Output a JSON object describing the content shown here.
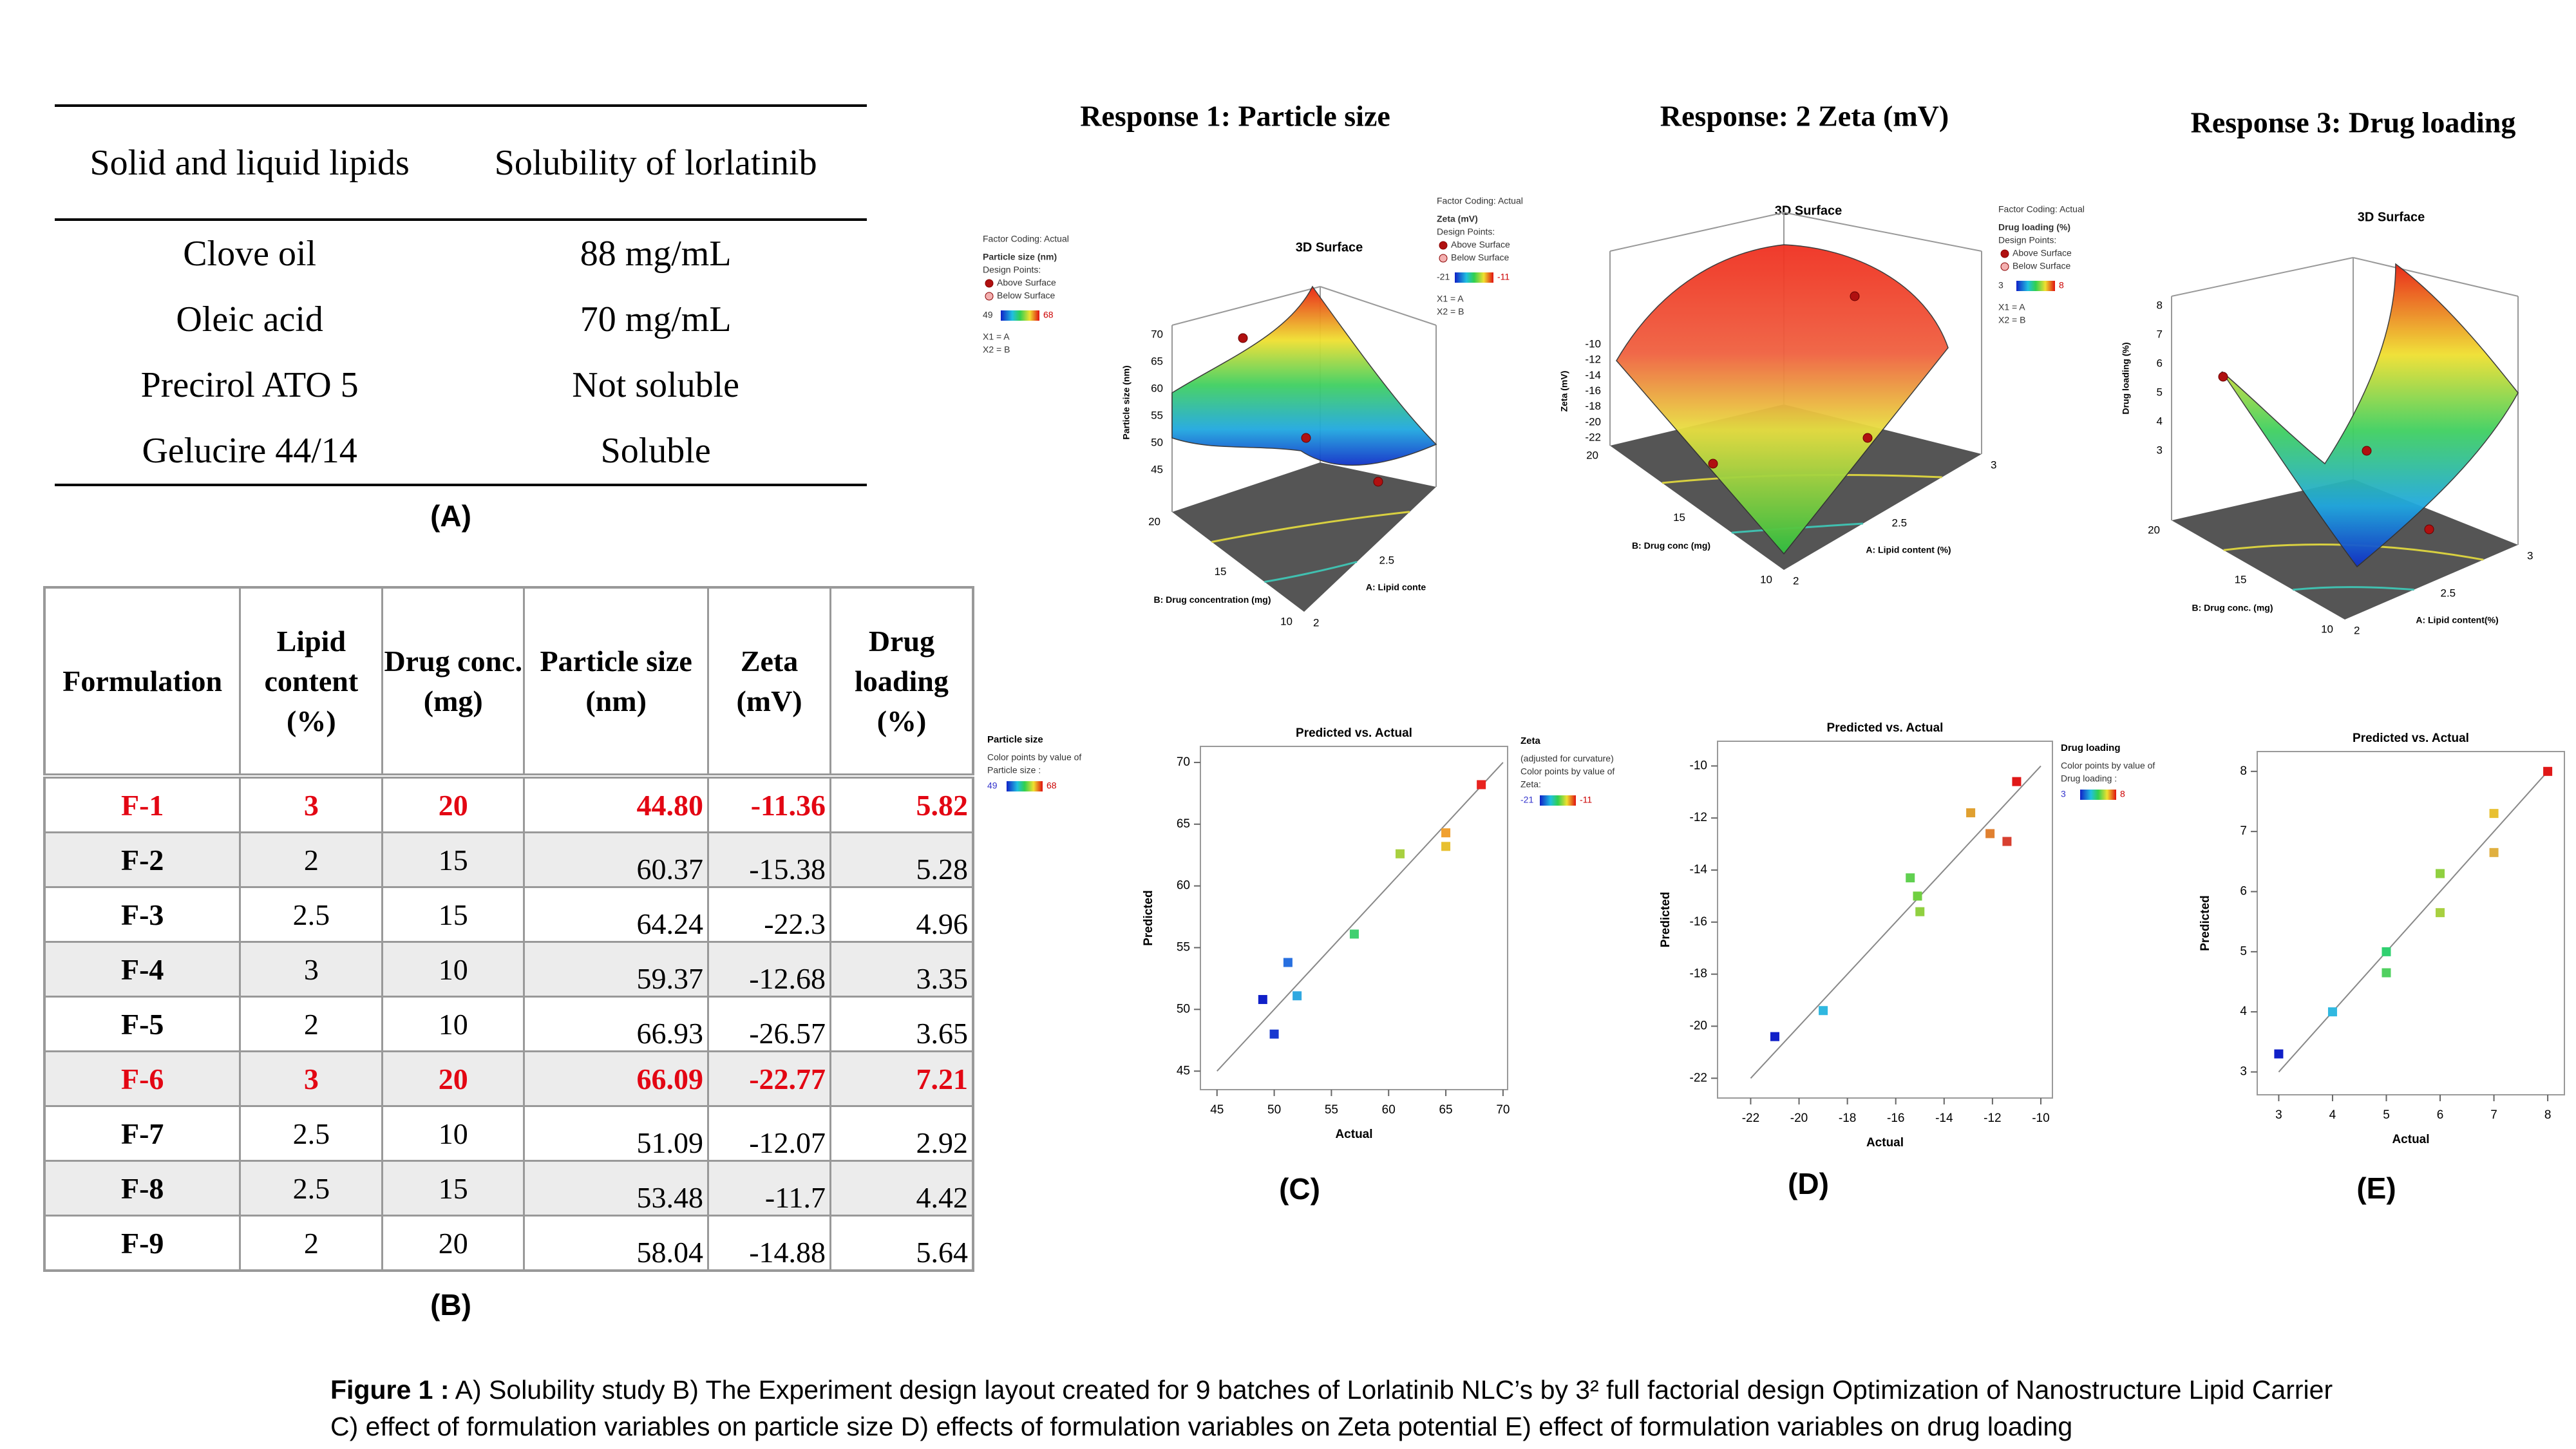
{
  "table_a": {
    "headers": [
      "Solid and liquid lipids",
      "Solubility of lorlatinib"
    ],
    "rows": [
      [
        "Clove oil",
        "88 mg/mL"
      ],
      [
        "Oleic acid",
        "70 mg/mL"
      ],
      [
        "Precirol ATO 5",
        "Not soluble"
      ],
      [
        "Gelucire 44/14",
        "Soluble"
      ]
    ],
    "label": "(A)"
  },
  "table_b": {
    "headers": [
      "Formulation",
      "Lipid content (%)",
      "Drug conc. (mg)",
      "Particle size (nm)",
      "Zeta (mV)",
      "Drug loading (%)"
    ],
    "rows": [
      {
        "cells": [
          "F-1",
          "3",
          "20",
          "44.80",
          "-11.36",
          "5.82"
        ],
        "highlight": true
      },
      {
        "cells": [
          "F-2",
          "2",
          "15",
          "60.37",
          "-15.38",
          "5.28"
        ],
        "highlight": false
      },
      {
        "cells": [
          "F-3",
          "2.5",
          "15",
          "64.24",
          "-22.3",
          "4.96"
        ],
        "highlight": false
      },
      {
        "cells": [
          "F-4",
          "3",
          "10",
          "59.37",
          "-12.68",
          "3.35"
        ],
        "highlight": false
      },
      {
        "cells": [
          "F-5",
          "2",
          "10",
          "66.93",
          "-26.57",
          "3.65"
        ],
        "highlight": false
      },
      {
        "cells": [
          "F-6",
          "3",
          "20",
          "66.09",
          "-22.77",
          "7.21"
        ],
        "highlight": true
      },
      {
        "cells": [
          "F-7",
          "2.5",
          "10",
          "51.09",
          "-12.07",
          "2.92"
        ],
        "highlight": false
      },
      {
        "cells": [
          "F-8",
          "2.5",
          "15",
          "53.48",
          "-11.7",
          "4.42"
        ],
        "highlight": false
      },
      {
        "cells": [
          "F-9",
          "2",
          "20",
          "58.04",
          "-14.88",
          "5.64"
        ],
        "highlight": false
      }
    ],
    "label": "(B)"
  },
  "surfaces": [
    {
      "heading": "Response 1: Particle size",
      "title": "3D Surface",
      "legend": {
        "coding": "Factor Coding: Actual",
        "response": "Particle size  (nm)",
        "design": "Design Points:",
        "above": "Above Surface",
        "below": "Below Surface",
        "cmin": "49",
        "cmax": "68",
        "x1": "X1 = A",
        "x2": "X2 = B"
      },
      "z_label": "Particle size  (nm)",
      "z_ticks": [
        "70",
        "65",
        "60",
        "55",
        "50",
        "45"
      ],
      "y_label": "B: Drug concentration (mg)",
      "y_ticks": [
        "20",
        "15",
        "10"
      ],
      "x_label": "A: Lipid conte",
      "x_ticks": [
        "2",
        "2.5"
      ]
    },
    {
      "heading": "Response: 2 Zeta (mV)",
      "title": "3D Surface",
      "legend": {
        "coding": "Factor Coding: Actual",
        "response": "Zeta (mV)",
        "design": "Design Points:",
        "above": "Above Surface",
        "below": "Below Surface",
        "cmin": "-21",
        "cmax": "-11",
        "x1": "X1 = A",
        "x2": "X2 = B"
      },
      "z_label": "Zeta (mV)",
      "z_ticks": [
        "-10",
        "-12",
        "-14",
        "-16",
        "-18",
        "-20",
        "-22"
      ],
      "y_label": "B: Drug conc (mg)",
      "y_ticks": [
        "20",
        "15",
        "10"
      ],
      "x_label": "A: Lipid content  (%)",
      "x_ticks": [
        "2",
        "2.5",
        "3"
      ]
    },
    {
      "heading": "Response 3: Drug loading",
      "title": "3D Surface",
      "legend": {
        "coding": "Factor Coding: Actual",
        "response": "Drug loading  (%)",
        "design": "Design Points:",
        "above": "Above Surface",
        "below": "Below Surface",
        "cmin": "3",
        "cmax": "8",
        "x1": "X1 = A",
        "x2": "X2 = B"
      },
      "z_label": "Drug loading (%)",
      "z_ticks": [
        "8",
        "7",
        "6",
        "5",
        "4",
        "3"
      ],
      "y_label": "B: Drug conc. (mg)",
      "y_ticks": [
        "20",
        "15",
        "10"
      ],
      "x_label": "A: Lipid content(%)",
      "x_ticks": [
        "2",
        "2.5",
        "3"
      ]
    }
  ],
  "chart_data": [
    {
      "type": "scatter",
      "title": "Predicted vs. Actual",
      "x_label": "Actual",
      "y_label": "Predicted",
      "panel": "(C)",
      "legend": {
        "title": "Particle size",
        "lines": [
          "Color points by value of",
          "Particle size :"
        ],
        "min": "49",
        "max": "68"
      },
      "xlim": [
        43.55,
        70.4
      ],
      "ylim": [
        43.5,
        71.3
      ],
      "xticks": [
        45,
        50,
        55,
        60,
        65,
        70
      ],
      "yticks": [
        45,
        50,
        55,
        60,
        65,
        70
      ],
      "x": [
        68.1,
        65,
        65,
        61,
        57,
        52,
        51.2,
        49,
        50
      ],
      "values": [
        68.2,
        64.3,
        63.2,
        62.6,
        56.1,
        51.1,
        53.8,
        50.8,
        48
      ],
      "colors": [
        "#e8231f",
        "#f0a030",
        "#e8c030",
        "#a8d040",
        "#40d070",
        "#30a8e0",
        "#2870e0",
        "#1020c8",
        "#1838d0"
      ],
      "fit_line": {
        "x": [
          45,
          70
        ],
        "y": [
          45,
          70
        ]
      }
    },
    {
      "type": "scatter",
      "title": "Predicted vs. Actual",
      "x_label": "Actual",
      "y_label": "Predicted",
      "panel": "(D)",
      "legend": {
        "title": "Zeta",
        "lines": [
          "(adjusted for curvature)",
          "Color points by value of",
          "Zeta:"
        ],
        "min": "-21",
        "max": "-11"
      },
      "xlim": [
        -23.37,
        -9.52
      ],
      "ylim": [
        -22.76,
        -9.05
      ],
      "xticks": [
        -22,
        -20,
        -18,
        -16,
        -14,
        -12,
        -10
      ],
      "yticks": [
        -22,
        -20,
        -18,
        -16,
        -14,
        -12,
        -10
      ],
      "x": [
        -21,
        -19,
        -15.4,
        -15.1,
        -15,
        -12.9,
        -12.1,
        -11.4,
        -11
      ],
      "values": [
        -20.4,
        -19.4,
        -14.3,
        -15,
        -15.6,
        -11.8,
        -12.6,
        -12.9,
        -10.6
      ],
      "colors": [
        "#1020c8",
        "#30b8e0",
        "#60d050",
        "#70d040",
        "#90d040",
        "#e0a030",
        "#e08030",
        "#d84030",
        "#e01818"
      ],
      "fit_line": {
        "x": [
          -22,
          -10
        ],
        "y": [
          -22,
          -10
        ]
      }
    },
    {
      "type": "scatter",
      "title": "Predicted vs. Actual",
      "x_label": "Actual",
      "y_label": "Predicted",
      "panel": "(E)",
      "legend": {
        "title": "Drug loading",
        "lines": [
          "Color points by value of",
          "Drug loading :"
        ],
        "min": "3",
        "max": "8"
      },
      "xlim": [
        2.6,
        8.31
      ],
      "ylim": [
        2.62,
        8.33
      ],
      "xticks": [
        3,
        4,
        5,
        6,
        7,
        8
      ],
      "yticks": [
        3,
        4,
        5,
        6,
        7,
        8
      ],
      "x": [
        3,
        4,
        5,
        5,
        6,
        6,
        7,
        7,
        8
      ],
      "values": [
        3.3,
        4,
        5,
        4.65,
        6.3,
        5.65,
        7.3,
        6.65,
        8
      ],
      "colors": [
        "#1020c8",
        "#30b8e0",
        "#30d070",
        "#50d060",
        "#90d040",
        "#a8d040",
        "#e8c030",
        "#e0b040",
        "#e01818"
      ],
      "fit_line": {
        "x": [
          3,
          8
        ],
        "y": [
          3,
          8
        ]
      }
    }
  ],
  "caption": {
    "label": "Figure 1 :",
    "lines": [
      " A) Solubility study B) The Experiment design layout created for 9 batches of Lorlatinib NLC’s by 3² full factorial design Optimization of Nanostructure Lipid Carrier",
      "C) effect of formulation variables on particle size D) effects of formulation variables on Zeta potential E) effect of formulation variables on drug loading"
    ]
  }
}
